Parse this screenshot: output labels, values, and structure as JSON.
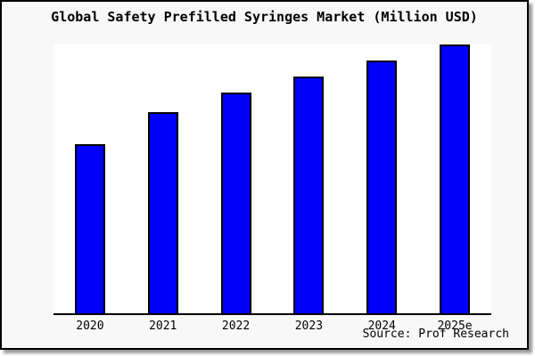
{
  "title": "Global Safety Prefilled Syringes Market (Million USD)",
  "source": "Source: Prof Research",
  "colors": {
    "bar_fill": "#0000fa",
    "bar_border": "#000000",
    "axis": "#000000",
    "frame_bg": "#f8f8f8",
    "plot_bg": "#ffffff",
    "text": "#000000"
  },
  "chart_data": {
    "type": "bar",
    "title": "Global Safety Prefilled Syringes Market (Million USD)",
    "categories": [
      "2020",
      "2021",
      "2022",
      "2023",
      "2024",
      "2025e"
    ],
    "values": [
      63,
      75,
      82,
      88,
      94,
      100
    ],
    "value_note": "no y-axis scale shown; values are index relative to 2025e = 100, read from bar pixel heights",
    "xlabel": "",
    "ylabel": "",
    "ylim": [
      0,
      100
    ],
    "grid": false,
    "legend": false,
    "source_note": "Source: Prof Research"
  }
}
